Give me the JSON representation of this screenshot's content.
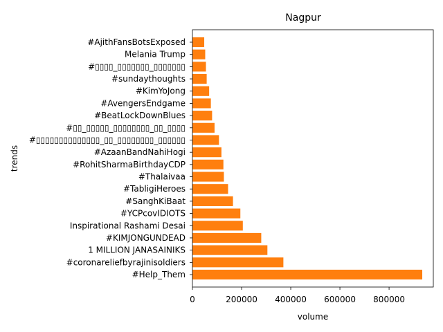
{
  "chart_data": {
    "type": "bar",
    "orientation": "horizontal",
    "title": "Nagpur",
    "xlabel": "volume",
    "ylabel": "trends",
    "bar_color": "#ff7f0e",
    "xlim": [
      0,
      980000
    ],
    "xticks": [
      0,
      200000,
      400000,
      600000,
      800000
    ],
    "xtick_labels": [
      "0",
      "200000",
      "400000",
      "600000",
      "800000"
    ],
    "grid": false,
    "categories": [
      "#Help_Them",
      "#coronareliefbyrajinisoldiers",
      "1 MILLION JANASAINIKS",
      "#KIMJONGUNDEAD",
      "Inspirational Rashami Desai",
      "#YCPcovIDIOTS",
      "#SanghKiBaat",
      "#TabligiHeroes",
      "#Thalaivaa",
      "#RohitSharmaBirthdayCDP",
      "#AzaanBandNahiHogi",
      "#▯▯▯▯▯▯▯▯▯▯▯▯▯▯_▯▯_▯▯▯▯▯▯▯▯_▯▯▯▯▯▯",
      "#▯▯_▯▯▯▯▯_▯▯▯▯▯▯▯▯_▯▯_▯▯▯▯",
      "#BeatLockDownBlues",
      "#AvengersEndgame",
      "#KimYoJong",
      "#sundaythoughts",
      "#▯▯▯▯_▯▯▯▯▯▯▯_▯▯▯▯▯▯▯",
      "Melania Trump",
      "#AjithFansBotsExposed"
    ],
    "values": [
      935000,
      370000,
      305000,
      280000,
      205000,
      195000,
      165000,
      145000,
      128000,
      126000,
      118000,
      108000,
      90000,
      80000,
      75000,
      68000,
      58000,
      55000,
      52000,
      48000
    ]
  }
}
